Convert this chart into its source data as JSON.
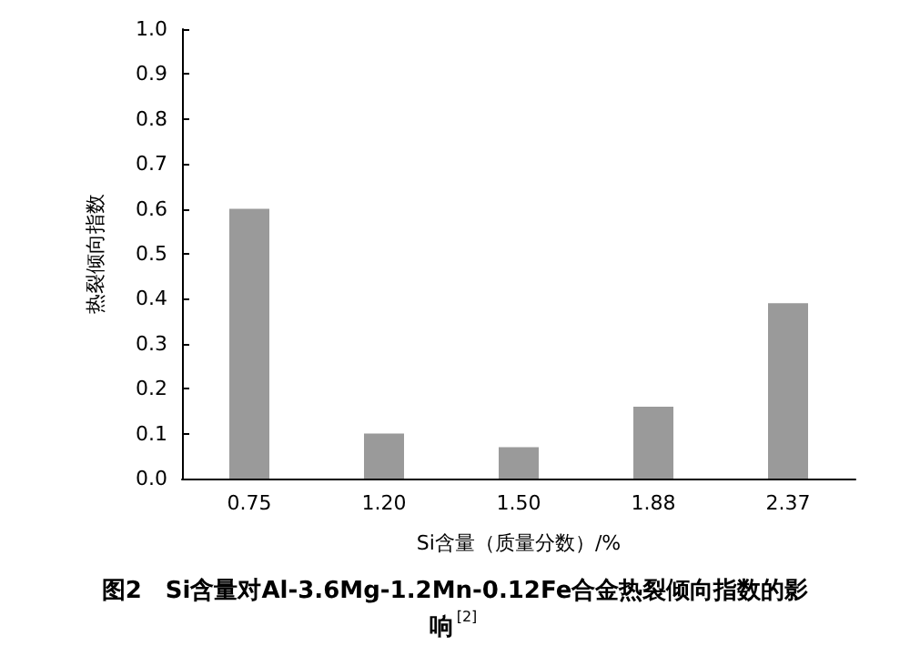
{
  "chart_data": {
    "type": "bar",
    "title": "图2　Si含量对Al-3.6Mg-1.2Mn-0.12Fe合金热裂倾向指数的影响$^{[2]}$",
    "xlabel": "Si含量（质量分数）/%",
    "ylabel": "热裂倾向指数",
    "categories": [
      "0.75",
      "1.20",
      "1.50",
      "1.88",
      "2.37"
    ],
    "values": [
      0.6,
      0.1,
      0.07,
      0.16,
      0.39
    ],
    "color": "#9a9a9a",
    "ylim": [
      0,
      1.0
    ],
    "yticks": [
      {
        "value": 0,
        "label": "0.0"
      },
      0.1,
      0.2,
      0.3,
      0.4,
      0.5,
      0.6,
      0.7,
      0.8,
      0.9,
      {
        "value": 1,
        "label": "1.0"
      }
    ],
    "grid": false
  }
}
